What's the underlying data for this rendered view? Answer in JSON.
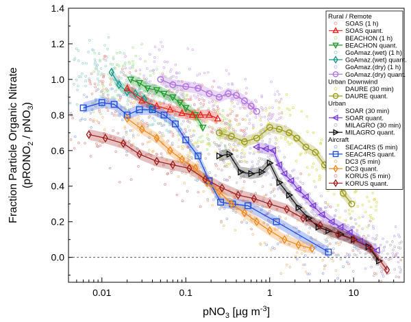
{
  "chart_data": {
    "type": "scatter",
    "xlabel": {
      "main": "pNO",
      "sub": "3",
      "rest": " [µg m",
      "sup": "-3",
      "end": "]"
    },
    "ylabel": {
      "line1": "Fraction Particle Organic Nitrate",
      "line2_a": "(pRONO",
      "line2_b": "2",
      "line2_c": " / pNO",
      "line2_d": "3",
      "line2_e": ")"
    },
    "x_scale": "log",
    "xlim": [
      0.004,
      40
    ],
    "ylim": [
      -0.14,
      1.4
    ],
    "x_ticks": [
      {
        "value": 0.01,
        "label": "0.01"
      },
      {
        "value": 0.1,
        "label": "0.1"
      },
      {
        "value": 1,
        "label": "1"
      },
      {
        "value": 10,
        "label": "10"
      }
    ],
    "y_ticks": [
      {
        "value": 0.0,
        "label": "0.0"
      },
      {
        "value": 0.2,
        "label": "0.2"
      },
      {
        "value": 0.4,
        "label": "0.4"
      },
      {
        "value": 0.6,
        "label": "0.6"
      },
      {
        "value": 0.8,
        "label": "0.8"
      },
      {
        "value": 1.0,
        "label": "1.0"
      },
      {
        "value": 1.2,
        "label": "1.2"
      },
      {
        "value": 1.4,
        "label": "1.4"
      }
    ],
    "zero_line": true,
    "legend": {
      "position": "top-right",
      "groups": [
        {
          "header": "Rural / Remote",
          "entries": [
            {
              "label": "SOAS (1 h)",
              "kind": "raw",
              "color": "#f4a0a0",
              "marker": "circle"
            },
            {
              "label": "SOAS quant.",
              "kind": "quant",
              "color": "#e8241c",
              "marker": "triangle-up"
            },
            {
              "label": "BEACHON (1 h)",
              "kind": "raw",
              "color": "#b8e8a0",
              "marker": "circle"
            },
            {
              "label": "BEACHON quant.",
              "kind": "quant",
              "color": "#1e9a2c",
              "marker": "triangle-down"
            },
            {
              "label": "GoAmaz.(wet) (1 h)",
              "kind": "raw",
              "color": "#a8d8d8",
              "marker": "circle"
            },
            {
              "label": "GoAmaz.(wet) quant.",
              "kind": "quant",
              "color": "#17998c",
              "marker": "diamond"
            },
            {
              "label": "GoAmaz.(dry) (1 h)",
              "kind": "raw",
              "color": "#d8b8f0",
              "marker": "circle"
            },
            {
              "label": "GoAmaz.(dry) quant.",
              "kind": "quant",
              "color": "#b070e0",
              "marker": "circle"
            }
          ]
        },
        {
          "header": "Urban Downwind",
          "entries": [
            {
              "label": "DAURE (30 min)",
              "kind": "raw",
              "color": "#e0e070",
              "marker": "circle"
            },
            {
              "label": "DAURE quant.",
              "kind": "quant",
              "color": "#9a9a14",
              "marker": "circle"
            }
          ]
        },
        {
          "header": "Urban",
          "entries": [
            {
              "label": "SOAR (30 min)",
              "kind": "raw",
              "color": "#c8b8f0",
              "marker": "circle"
            },
            {
              "label": "SOAR quant.",
              "kind": "quant",
              "color": "#7a3cd8",
              "marker": "triangle-left"
            },
            {
              "label": "MILAGRO (30 min)",
              "kind": "raw",
              "color": "#c0c0c0",
              "marker": "circle"
            },
            {
              "label": "MILAGRO quant.",
              "kind": "quant",
              "color": "#111111",
              "marker": "triangle-right"
            }
          ]
        },
        {
          "header": "Aircraft",
          "entries": [
            {
              "label": "SEAC4RS (5 min)",
              "kind": "raw",
              "color": "#a0b8f0",
              "marker": "circle"
            },
            {
              "label": "SEAC4RS quant.",
              "kind": "quant",
              "color": "#1c4ce0",
              "marker": "square"
            },
            {
              "label": "DC3 (5 min)",
              "kind": "raw",
              "color": "#f8c890",
              "marker": "circle"
            },
            {
              "label": "DC3 quant.",
              "kind": "quant",
              "color": "#f08a1c",
              "marker": "diamond"
            },
            {
              "label": "KORUS (5 min)",
              "kind": "raw",
              "color": "#e0a0a0",
              "marker": "circle"
            },
            {
              "label": "KORUS quant.",
              "kind": "quant",
              "color": "#a01e1e",
              "marker": "diamond"
            }
          ]
        }
      ]
    },
    "series": [
      {
        "name": "GoAmaz.(wet) quant.",
        "color": "#17998c",
        "marker": "diamond",
        "x": [
          0.013,
          0.016,
          0.02,
          0.025,
          0.032,
          0.04
        ],
        "y": [
          1.04,
          0.97,
          0.93,
          0.92,
          0.89,
          0.84
        ]
      },
      {
        "name": "BEACHON quant.",
        "color": "#1e9a2c",
        "marker": "triangle-down",
        "x": [
          0.022,
          0.028,
          0.035,
          0.045,
          0.055,
          0.07,
          0.085,
          0.1,
          0.13,
          0.16
        ],
        "y": [
          1.0,
          0.98,
          0.95,
          0.94,
          0.92,
          0.9,
          0.87,
          0.84,
          0.8,
          0.73
        ]
      },
      {
        "name": "SOAS quant.",
        "color": "#e8241c",
        "marker": "triangle-up",
        "x": [
          0.02,
          0.03,
          0.045,
          0.065,
          0.09,
          0.12,
          0.15,
          0.19,
          0.24
        ],
        "y": [
          0.95,
          0.88,
          0.85,
          0.83,
          0.81,
          0.8,
          0.8,
          0.8,
          0.78
        ]
      },
      {
        "name": "GoAmaz.(dry) quant.",
        "color": "#b070e0",
        "marker": "circle",
        "x": [
          0.05,
          0.07,
          0.1,
          0.14,
          0.19,
          0.25,
          0.32,
          0.4,
          0.5,
          0.6,
          0.7
        ],
        "y": [
          1.0,
          0.97,
          0.96,
          0.95,
          0.92,
          0.9,
          0.92,
          0.91,
          0.88,
          0.85,
          0.82
        ]
      },
      {
        "name": "DAURE quant.",
        "color": "#9a9a14",
        "marker": "circle",
        "x": [
          0.25,
          0.35,
          0.5,
          0.7,
          1.0,
          1.3,
          1.7,
          2.1,
          2.7,
          3.5,
          4.5,
          6,
          7.5,
          9.5
        ],
        "y": [
          0.7,
          0.68,
          0.65,
          0.67,
          0.73,
          0.72,
          0.7,
          0.67,
          0.62,
          0.59,
          0.52,
          0.45,
          0.36,
          0.3
        ]
      },
      {
        "name": "SOAR quant.",
        "color": "#7a3cd8",
        "marker": "triangle-left",
        "x": [
          0.7,
          0.9,
          1.1,
          1.3,
          1.5,
          1.8,
          2.2,
          2.7,
          3.3,
          4.2,
          5.5,
          7,
          9,
          12,
          19
        ],
        "y": [
          0.62,
          0.61,
          0.6,
          0.52,
          0.47,
          0.43,
          0.38,
          0.34,
          0.29,
          0.24,
          0.2,
          0.17,
          0.14,
          0.09,
          0.04
        ]
      },
      {
        "name": "MILAGRO quant.",
        "color": "#111111",
        "marker": "triangle-right",
        "x": [
          0.25,
          0.33,
          0.45,
          0.6,
          0.8,
          1.0,
          1.3,
          1.7,
          2.2,
          2.9,
          3.8,
          5,
          7,
          10,
          15,
          20
        ],
        "y": [
          0.57,
          0.58,
          0.48,
          0.47,
          0.48,
          0.53,
          0.42,
          0.35,
          0.28,
          0.22,
          0.17,
          0.15,
          0.13,
          0.1,
          0.06,
          -0.02
        ]
      },
      {
        "name": "SEAC4RS quant.",
        "color": "#1c4ce0",
        "marker": "square",
        "x": [
          0.006,
          0.01,
          0.014,
          0.02,
          0.028,
          0.04,
          0.055,
          0.075,
          0.1,
          0.14,
          0.19,
          0.26,
          0.36,
          0.55,
          1.2,
          5
        ],
        "y": [
          0.84,
          0.87,
          0.86,
          0.8,
          0.83,
          0.83,
          0.8,
          0.75,
          0.66,
          0.57,
          0.43,
          0.31,
          0.3,
          0.29,
          0.2,
          0.03
        ]
      },
      {
        "name": "DC3 quant.",
        "color": "#f08a1c",
        "marker": "diamond",
        "x": [
          0.02,
          0.03,
          0.045,
          0.065,
          0.09,
          0.13,
          0.18,
          0.25,
          0.35,
          0.5,
          0.7,
          1.0,
          1.5,
          2.2,
          3.2
        ],
        "y": [
          0.78,
          0.72,
          0.67,
          0.6,
          0.55,
          0.5,
          0.42,
          0.37,
          0.3,
          0.25,
          0.2,
          0.15,
          0.1,
          0.07,
          0.05
        ]
      },
      {
        "name": "KORUS quant.",
        "color": "#a01e1e",
        "marker": "diamond",
        "x": [
          0.007,
          0.011,
          0.018,
          0.028,
          0.045,
          0.07,
          0.11,
          0.17,
          0.27,
          0.42,
          0.65,
          1.0,
          1.6,
          2.5,
          4,
          6.5,
          10,
          16,
          25
        ],
        "y": [
          0.69,
          0.67,
          0.64,
          0.58,
          0.54,
          0.52,
          0.5,
          0.44,
          0.39,
          0.35,
          0.33,
          0.3,
          0.27,
          0.22,
          0.18,
          0.13,
          0.1,
          0.05,
          -0.07
        ]
      }
    ]
  }
}
